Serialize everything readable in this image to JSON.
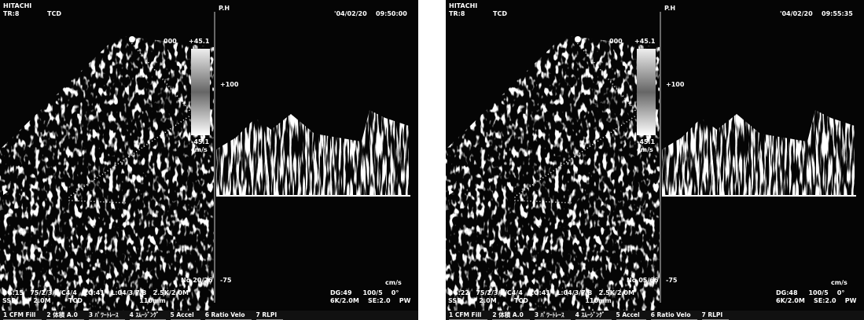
{
  "panels": [
    {
      "brand": "HITACHI",
      "probe": "TR:8",
      "mode": "TCD",
      "ph": "P.H",
      "date": "'04/02/20",
      "time": "09:50:00",
      "bank": "000",
      "scale_top": "+45.1",
      "scale_bottom": "-45.1",
      "scale_unit": "cm/s",
      "vel_top": "+100",
      "vel_bottom": "-75",
      "frame": "No.20/26",
      "vel_unit": "cm/s",
      "info_left": [
        "BG:15   75/2/3/2/C4/4   CG:41   L:04/3/7/8   2.5K/2.0M",
        "SSB        2.0M        TCD                          110mm"
      ],
      "info_right": [
        "DG:49     100/5    0°",
        "6K/2.0M    SE:2.0    PW"
      ],
      "menu": [
        "1 CFM Fill",
        "2 体積 A.0",
        "3 ﾊﾟﾜｰﾄﾚｰｽ",
        "4 ｽﾑｰｼﾞﾝｸﾞ",
        "5 Accel",
        "6 Ratio Velo",
        "7 RLPI"
      ]
    },
    {
      "brand": "HITACHI",
      "probe": "TR:8",
      "mode": "TCD",
      "ph": "P.H",
      "date": "'04/02/20",
      "time": "09:55:35",
      "bank": "000",
      "scale_top": "+45.1",
      "scale_bottom": "-45.1",
      "scale_unit": "cm/s",
      "vel_top": "+100",
      "vel_bottom": "-75",
      "frame": "No.05/66",
      "vel_unit": "cm/s",
      "info_left": [
        "BG:22   75/2/3/2/C4/4   CG:41   L:04/3/7/8   2.5K/2.0M",
        "SSB        2.0M        TCD                          110mm"
      ],
      "info_right": [
        "DG:48     100/5    0°",
        "6K/2.0M    SE:2.0    PW"
      ],
      "menu": [
        "1 CFM Fill",
        "2 体積 A.0",
        "3 ﾊﾟﾜｰﾄﾚｰｽ",
        "4 ｽﾑｰｼﾞﾝｸﾞ",
        "5 Accel",
        "6 Ratio Velo",
        "7 RLPI"
      ]
    }
  ]
}
